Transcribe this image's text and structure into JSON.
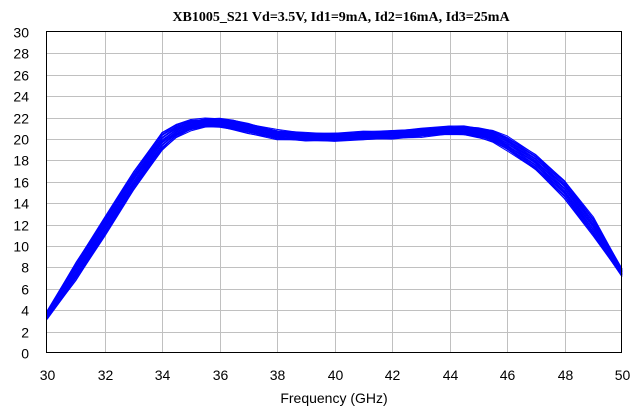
{
  "chart_data": {
    "type": "line",
    "title": "XB1005_S21  Vd=3.5V, Id1=9mA, Id2=16mA, Id3=25mA",
    "xlabel": "Frequency (GHz)",
    "ylabel": "",
    "xlim": [
      30,
      50
    ],
    "ylim": [
      0,
      30
    ],
    "x_ticks": [
      "30",
      "32",
      "34",
      "36",
      "38",
      "40",
      "42",
      "44",
      "46",
      "48",
      "50"
    ],
    "y_ticks": [
      "0",
      "2",
      "4",
      "6",
      "8",
      "10",
      "12",
      "14",
      "16",
      "18",
      "20",
      "22",
      "24",
      "26",
      "28",
      "30"
    ],
    "grid": true,
    "legend": "none",
    "series_color": "#0000ff",
    "series": [
      {
        "x": [
          30,
          31,
          32,
          33,
          34,
          34.5,
          35,
          35.5,
          36,
          36.5,
          37,
          38,
          39,
          40,
          41,
          42,
          43,
          44,
          44.5,
          45,
          45.5,
          46,
          47,
          48,
          49,
          50
        ],
        "values": [
          3.5,
          7.6,
          11.8,
          16.0,
          19.8,
          20.8,
          21.3,
          21.5,
          21.5,
          21.3,
          21.0,
          20.4,
          20.2,
          20.2,
          20.3,
          20.4,
          20.6,
          20.8,
          20.8,
          20.6,
          20.3,
          19.6,
          17.8,
          15.3,
          11.8,
          7.5
        ]
      }
    ]
  }
}
